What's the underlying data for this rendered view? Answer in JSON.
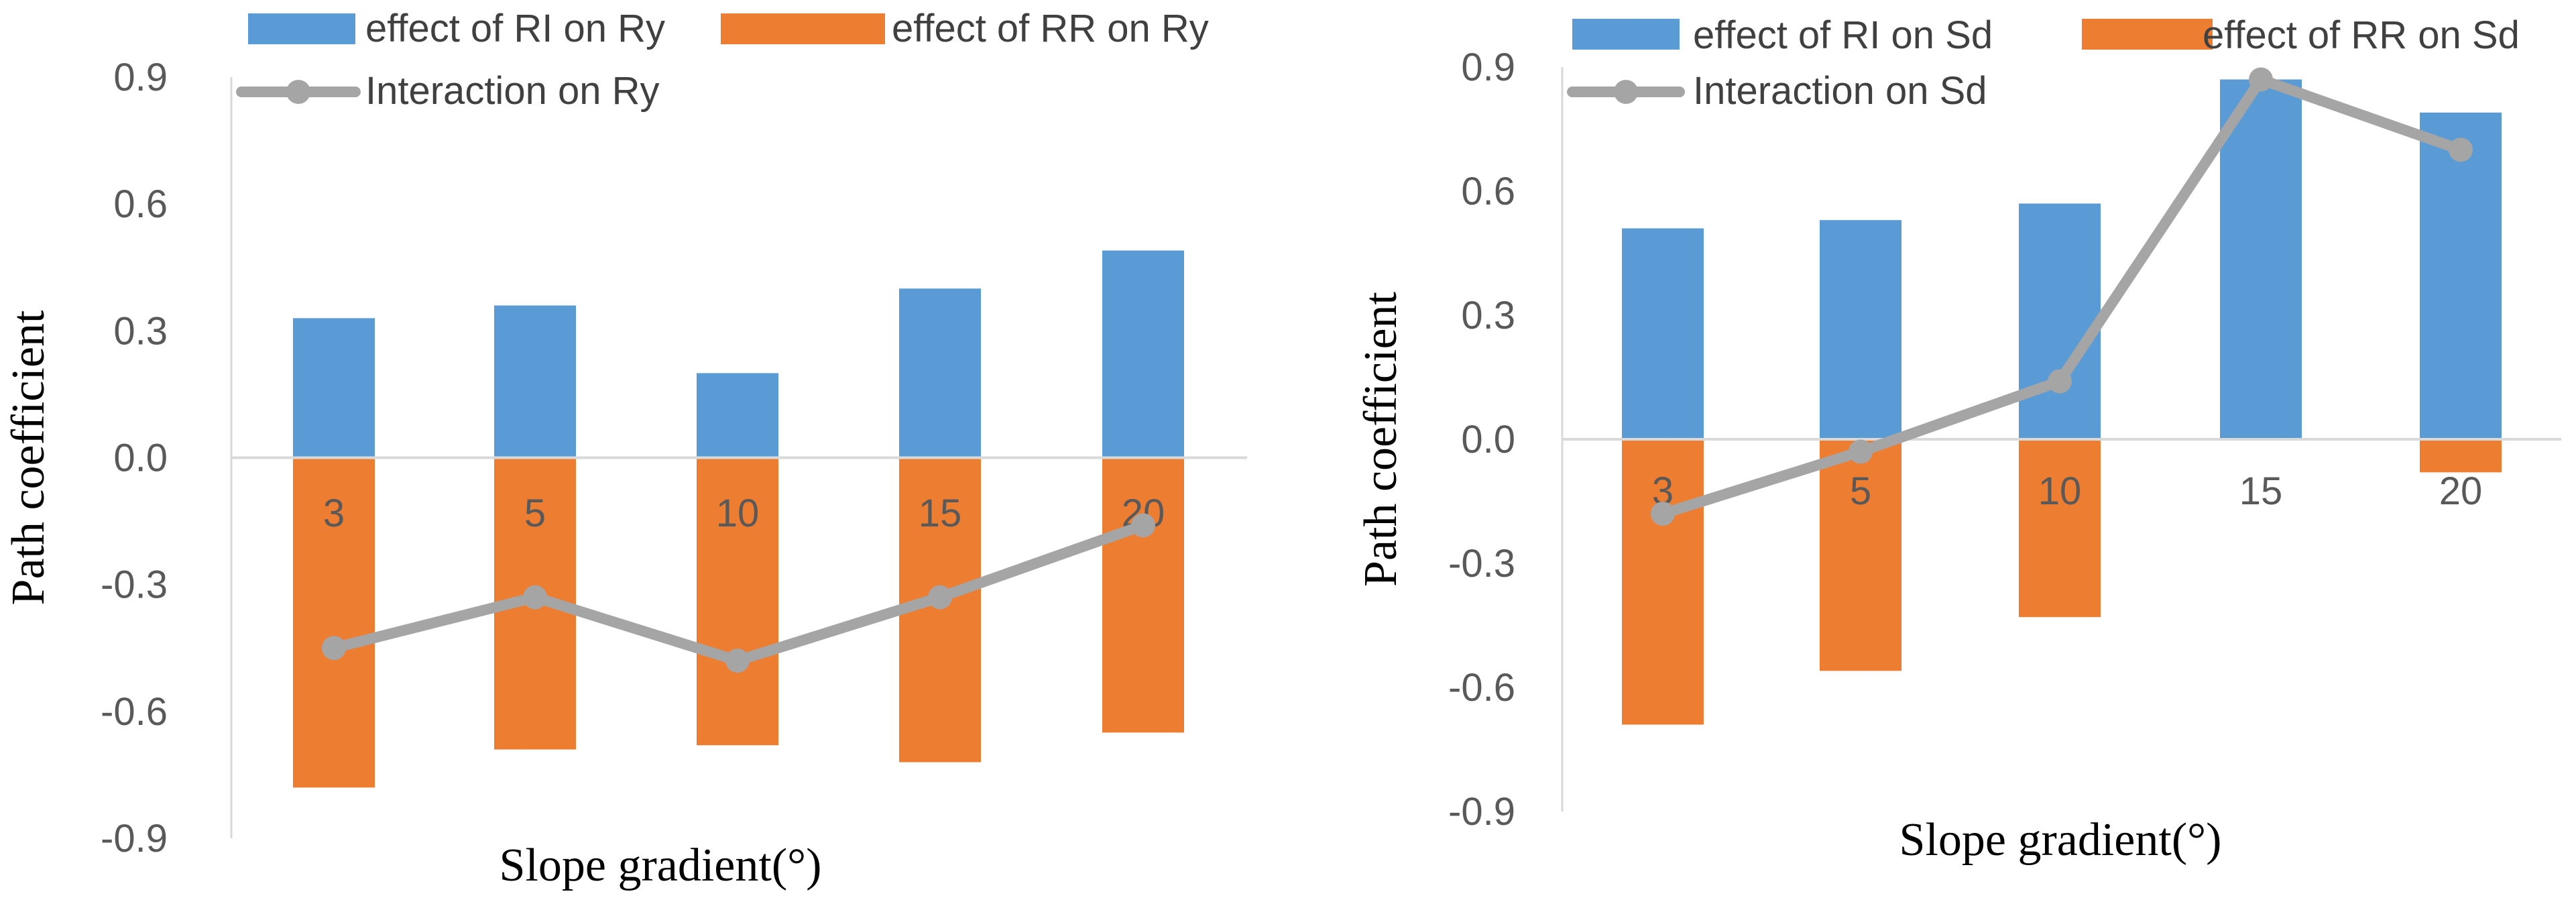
{
  "chart_data": [
    {
      "type": "bar",
      "categories": [
        "3",
        "5",
        "10",
        "15",
        "20"
      ],
      "series": [
        {
          "name": "effect of RI on Ry",
          "kind": "bar",
          "color": "#5B9BD5",
          "values": [
            0.33,
            0.36,
            0.2,
            0.4,
            0.49
          ]
        },
        {
          "name": "effect of RR on Ry",
          "kind": "bar",
          "color": "#ED7D31",
          "values": [
            -0.78,
            -0.69,
            -0.68,
            -0.72,
            -0.65
          ]
        },
        {
          "name": "Interaction on Ry",
          "kind": "line",
          "color": "#A5A5A5",
          "values": [
            -0.45,
            -0.33,
            -0.48,
            -0.33,
            -0.16
          ]
        }
      ],
      "yticks": [
        "0.9",
        "0.6",
        "0.3",
        "0.0",
        "-0.3",
        "-0.6",
        "-0.9"
      ],
      "ylim": [
        -0.9,
        0.9
      ],
      "xlabel": "Slope gradient(°)",
      "ylabel": "Path coefficient",
      "legend": "top"
    },
    {
      "type": "bar",
      "categories": [
        "3",
        "5",
        "10",
        "15",
        "20"
      ],
      "series": [
        {
          "name": "effect of RI on Sd",
          "kind": "bar",
          "color": "#5B9BD5",
          "values": [
            0.51,
            0.53,
            0.57,
            0.87,
            0.79
          ]
        },
        {
          "name": "effect of RR on Sd",
          "kind": "bar",
          "color": "#ED7D31",
          "values": [
            -0.69,
            -0.56,
            -0.43,
            0.0,
            -0.08
          ]
        },
        {
          "name": "Interaction on Sd",
          "kind": "line",
          "color": "#A5A5A5",
          "values": [
            -0.18,
            -0.03,
            0.14,
            0.87,
            0.7
          ]
        }
      ],
      "yticks": [
        "0.9",
        "0.6",
        "0.3",
        "0.0",
        "-0.3",
        "-0.6",
        "-0.9"
      ],
      "ylim": [
        -0.9,
        0.9
      ],
      "xlabel": "Slope gradient(°)",
      "ylabel": "Path coefficient",
      "legend": "top"
    }
  ]
}
